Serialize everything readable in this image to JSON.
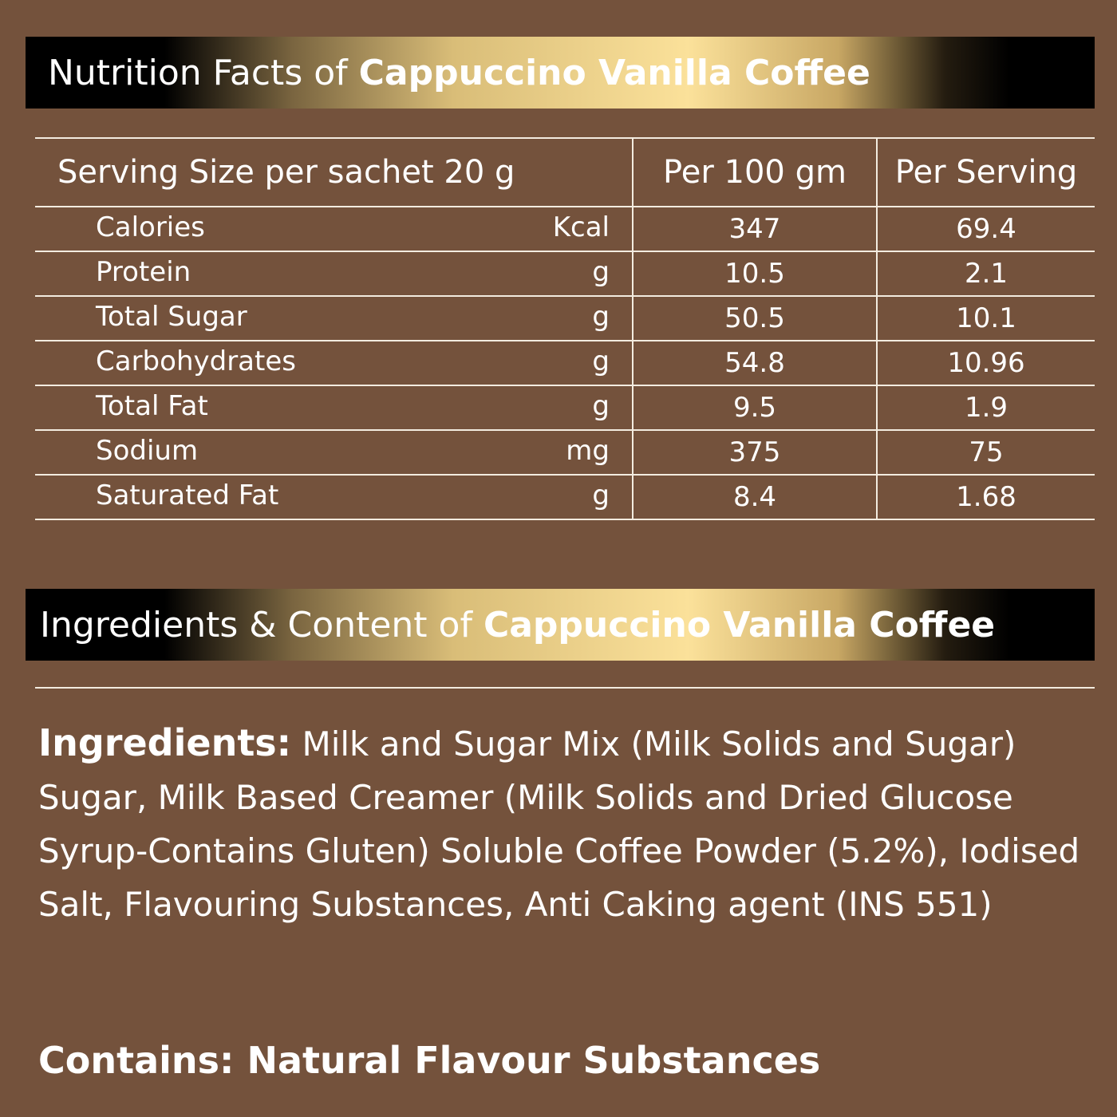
{
  "nutrition": {
    "title_prefix": "Nutrition Facts of",
    "title_product": "Cappuccino Vanilla Coffee",
    "header": [
      "Serving Size per sachet 20 g",
      "Per 100 gm",
      "Per Serving"
    ],
    "rows": [
      {
        "name": "Calories",
        "unit": "Kcal",
        "per100": "347",
        "perServing": "69.4"
      },
      {
        "name": "Protein",
        "unit": "g",
        "per100": "10.5",
        "perServing": "2.1"
      },
      {
        "name": "Total Sugar",
        "unit": "g",
        "per100": "50.5",
        "perServing": "10.1"
      },
      {
        "name": "Carbohydrates",
        "unit": "g",
        "per100": "54.8",
        "perServing": "10.96"
      },
      {
        "name": "Total Fat",
        "unit": "g",
        "per100": "9.5",
        "perServing": "1.9"
      },
      {
        "name": "Sodium",
        "unit": "mg",
        "per100": "375",
        "perServing": "75"
      },
      {
        "name": "Saturated Fat",
        "unit": "g",
        "per100": "8.4",
        "perServing": "1.68"
      }
    ]
  },
  "ingredients": {
    "title_prefix": "Ingredients & Content of",
    "title_product": "Cappuccino Vanilla Coffee",
    "label": "Ingredients:",
    "text": "Milk and Sugar Mix (Milk Solids and Sugar) Sugar, Milk Based Creamer (Milk Solids and Dried Glucose Syrup-Contains Gluten) Soluble Coffee Powder (5.2%), Iodised Salt, Flavouring Substances, Anti Caking agent (INS 551)",
    "contains": "Contains: Natural Flavour Substances"
  },
  "colors": {
    "background": "#74523c",
    "gold": "#fbe19a",
    "banner": "#000000"
  }
}
